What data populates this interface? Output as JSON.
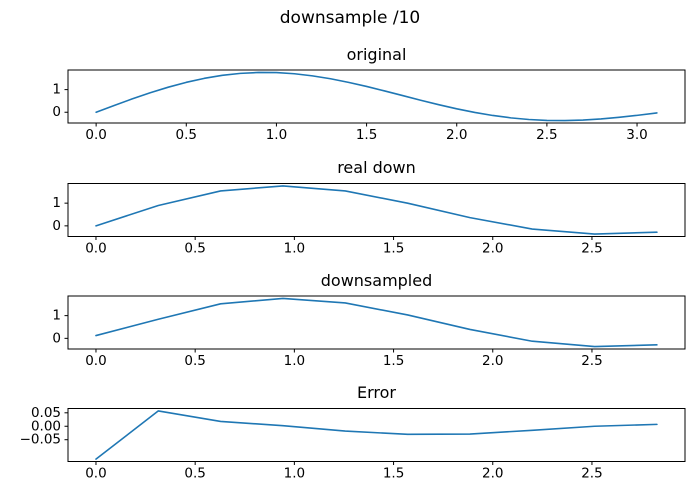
{
  "figure": {
    "suptitle": "downsample /10",
    "background_color": "#ffffff",
    "axis_color": "#000000",
    "line_color": "#1f77b4"
  },
  "chart_data": [
    {
      "type": "line",
      "title": "original",
      "x": [
        0,
        0.1,
        0.2,
        0.3,
        0.4,
        0.5,
        0.6,
        0.7,
        0.8,
        0.9,
        1.0,
        1.1,
        1.2,
        1.3,
        1.4,
        1.5,
        1.6,
        1.7,
        1.8,
        1.9,
        2.0,
        2.1,
        2.2,
        2.3,
        2.4,
        2.5,
        2.6,
        2.7,
        2.8,
        2.9,
        3.0,
        3.11
      ],
      "y": [
        0.0,
        0.299,
        0.588,
        0.86,
        1.107,
        1.321,
        1.497,
        1.63,
        1.717,
        1.757,
        1.751,
        1.7,
        1.607,
        1.479,
        1.32,
        1.139,
        0.941,
        0.736,
        0.531,
        0.334,
        0.152,
        -0.008,
        -0.143,
        -0.248,
        -0.321,
        -0.36,
        -0.368,
        -0.345,
        -0.296,
        -0.225,
        -0.138,
        -0.031
      ],
      "xlim": [
        -0.156,
        3.266
      ],
      "ylim": [
        -0.475,
        1.866
      ],
      "xtick_values": [
        0,
        0.5,
        1,
        1.5,
        2,
        2.5,
        3
      ],
      "xtick_labels": [
        "0.0",
        "0.5",
        "1.0",
        "1.5",
        "2.0",
        "2.5",
        "3.0"
      ],
      "ytick_values": [
        0,
        1
      ],
      "ytick_labels": [
        "0",
        "1"
      ],
      "grid": false
    },
    {
      "type": "line",
      "title": "real down",
      "x": [
        0,
        0.3142,
        0.6283,
        0.9425,
        1.2566,
        1.5708,
        1.885,
        2.1991,
        2.5133,
        2.8274
      ],
      "y": [
        0.0,
        0.897,
        1.539,
        1.76,
        1.539,
        1.0,
        0.363,
        -0.142,
        -0.363,
        -0.279
      ],
      "xlim": [
        -0.141,
        2.969
      ],
      "ylim": [
        -0.469,
        1.866
      ],
      "xtick_values": [
        0,
        0.5,
        1,
        1.5,
        2,
        2.5
      ],
      "xtick_labels": [
        "0.0",
        "0.5",
        "1.0",
        "1.5",
        "2.0",
        "2.5"
      ],
      "ytick_values": [
        0,
        1
      ],
      "ytick_labels": [
        "0",
        "1"
      ],
      "grid": false
    },
    {
      "type": "line",
      "title": "downsampled",
      "x": [
        0,
        0.3142,
        0.6283,
        0.9425,
        1.2566,
        1.5708,
        1.885,
        2.1991,
        2.5133,
        2.8274
      ],
      "y": [
        0.122,
        0.84,
        1.521,
        1.758,
        1.557,
        1.03,
        0.392,
        -0.127,
        -0.363,
        -0.286
      ],
      "xlim": [
        -0.141,
        2.969
      ],
      "ylim": [
        -0.469,
        1.864
      ],
      "xtick_values": [
        0,
        0.5,
        1,
        1.5,
        2,
        2.5
      ],
      "xtick_labels": [
        "0.0",
        "0.5",
        "1.0",
        "1.5",
        "2.0",
        "2.5"
      ],
      "ytick_values": [
        0,
        1
      ],
      "ytick_labels": [
        "0",
        "1"
      ],
      "grid": false
    },
    {
      "type": "line",
      "title": "Error",
      "x": [
        0,
        0.3142,
        0.6283,
        0.9425,
        1.2566,
        1.5708,
        1.885,
        2.1991,
        2.5133,
        2.8274
      ],
      "y": [
        -0.122,
        0.057,
        0.018,
        0.002,
        -0.018,
        -0.03,
        -0.029,
        -0.015,
        0.0,
        0.007
      ],
      "xlim": [
        -0.141,
        2.969
      ],
      "ylim": [
        -0.131,
        0.066
      ],
      "xtick_values": [
        0,
        0.5,
        1,
        1.5,
        2,
        2.5
      ],
      "xtick_labels": [
        "0.0",
        "0.5",
        "1.0",
        "1.5",
        "2.0",
        "2.5"
      ],
      "ytick_values": [
        -0.05,
        0,
        0.05
      ],
      "ytick_labels": [
        "−0.05",
        "0.00",
        "0.05"
      ],
      "grid": false
    }
  ]
}
